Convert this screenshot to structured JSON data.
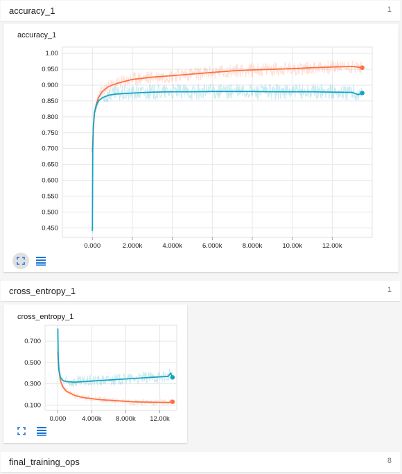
{
  "sections": [
    {
      "title": "accuracy_1",
      "count": "1"
    },
    {
      "title": "cross_entropy_1",
      "count": "1"
    },
    {
      "title": "final_training_ops",
      "count": "8"
    }
  ],
  "chart_data": [
    {
      "type": "line",
      "title": "accuracy_1",
      "xlim": [
        -1500,
        14000
      ],
      "ylim": [
        0.42,
        1.02
      ],
      "x_ticks": [
        0,
        2000,
        4000,
        6000,
        8000,
        10000,
        12000
      ],
      "x_tick_labels": [
        "0.000",
        "2.000k",
        "4.000k",
        "6.000k",
        "8.000k",
        "10.00k",
        "12.00k"
      ],
      "y_ticks": [
        0.45,
        0.5,
        0.55,
        0.6,
        0.65,
        0.7,
        0.75,
        0.8,
        0.85,
        0.9,
        0.95,
        1.0
      ],
      "y_tick_labels": [
        "0.450",
        "0.500",
        "0.550",
        "0.600",
        "0.650",
        "0.700",
        "0.750",
        "0.800",
        "0.850",
        "0.900",
        "0.950",
        "1.00"
      ],
      "grid": true,
      "series": [
        {
          "color": "#ff7043",
          "x": [
            0,
            50,
            100,
            200,
            300,
            500,
            800,
            1200,
            2000,
            3000,
            4000,
            5000,
            6000,
            7000,
            8000,
            9000,
            10000,
            11000,
            12000,
            13000,
            13500
          ],
          "y": [
            0.69,
            0.76,
            0.81,
            0.84,
            0.86,
            0.88,
            0.895,
            0.905,
            0.918,
            0.925,
            0.93,
            0.935,
            0.94,
            0.945,
            0.948,
            0.95,
            0.952,
            0.955,
            0.957,
            0.959,
            0.955
          ]
        },
        {
          "color": "#12a4c1",
          "x": [
            0,
            20,
            50,
            100,
            200,
            300,
            500,
            800,
            1200,
            2000,
            3000,
            4000,
            5000,
            6000,
            7000,
            8000,
            9000,
            10000,
            11000,
            12000,
            13000,
            13300,
            13500
          ],
          "y": [
            0.44,
            0.69,
            0.77,
            0.81,
            0.835,
            0.85,
            0.86,
            0.868,
            0.872,
            0.875,
            0.878,
            0.879,
            0.879,
            0.88,
            0.88,
            0.88,
            0.879,
            0.879,
            0.879,
            0.878,
            0.877,
            0.87,
            0.875
          ]
        }
      ]
    },
    {
      "type": "line",
      "title": "cross_entropy_1",
      "xlim": [
        -1500,
        14000
      ],
      "ylim": [
        0.05,
        0.85
      ],
      "x_ticks": [
        0,
        4000,
        8000,
        12000
      ],
      "x_tick_labels": [
        "0.000",
        "4.000k",
        "8.000k",
        "12.00k"
      ],
      "y_ticks": [
        0.1,
        0.3,
        0.5,
        0.7
      ],
      "y_tick_labels": [
        "0.100",
        "0.300",
        "0.500",
        "0.700"
      ],
      "grid": true,
      "series": [
        {
          "color": "#ff7043",
          "x": [
            0,
            100,
            300,
            600,
            1000,
            2000,
            3000,
            4000,
            5000,
            6000,
            7000,
            8000,
            9000,
            10000,
            11000,
            12000,
            13000,
            13500
          ],
          "y": [
            0.6,
            0.45,
            0.33,
            0.27,
            0.23,
            0.19,
            0.17,
            0.16,
            0.15,
            0.145,
            0.14,
            0.135,
            0.13,
            0.128,
            0.126,
            0.125,
            0.124,
            0.13
          ]
        },
        {
          "color": "#12a4c1",
          "x": [
            0,
            50,
            150,
            300,
            600,
            1000,
            2000,
            3000,
            4000,
            5000,
            6000,
            7000,
            8000,
            9000,
            10000,
            11000,
            12000,
            13000,
            13300,
            13500
          ],
          "y": [
            0.82,
            0.55,
            0.42,
            0.36,
            0.33,
            0.32,
            0.315,
            0.32,
            0.325,
            0.33,
            0.335,
            0.34,
            0.345,
            0.35,
            0.355,
            0.36,
            0.365,
            0.37,
            0.4,
            0.36
          ]
        }
      ]
    }
  ],
  "icons": {
    "expand": "fullscreen-icon",
    "data": "list-lines-icon"
  }
}
